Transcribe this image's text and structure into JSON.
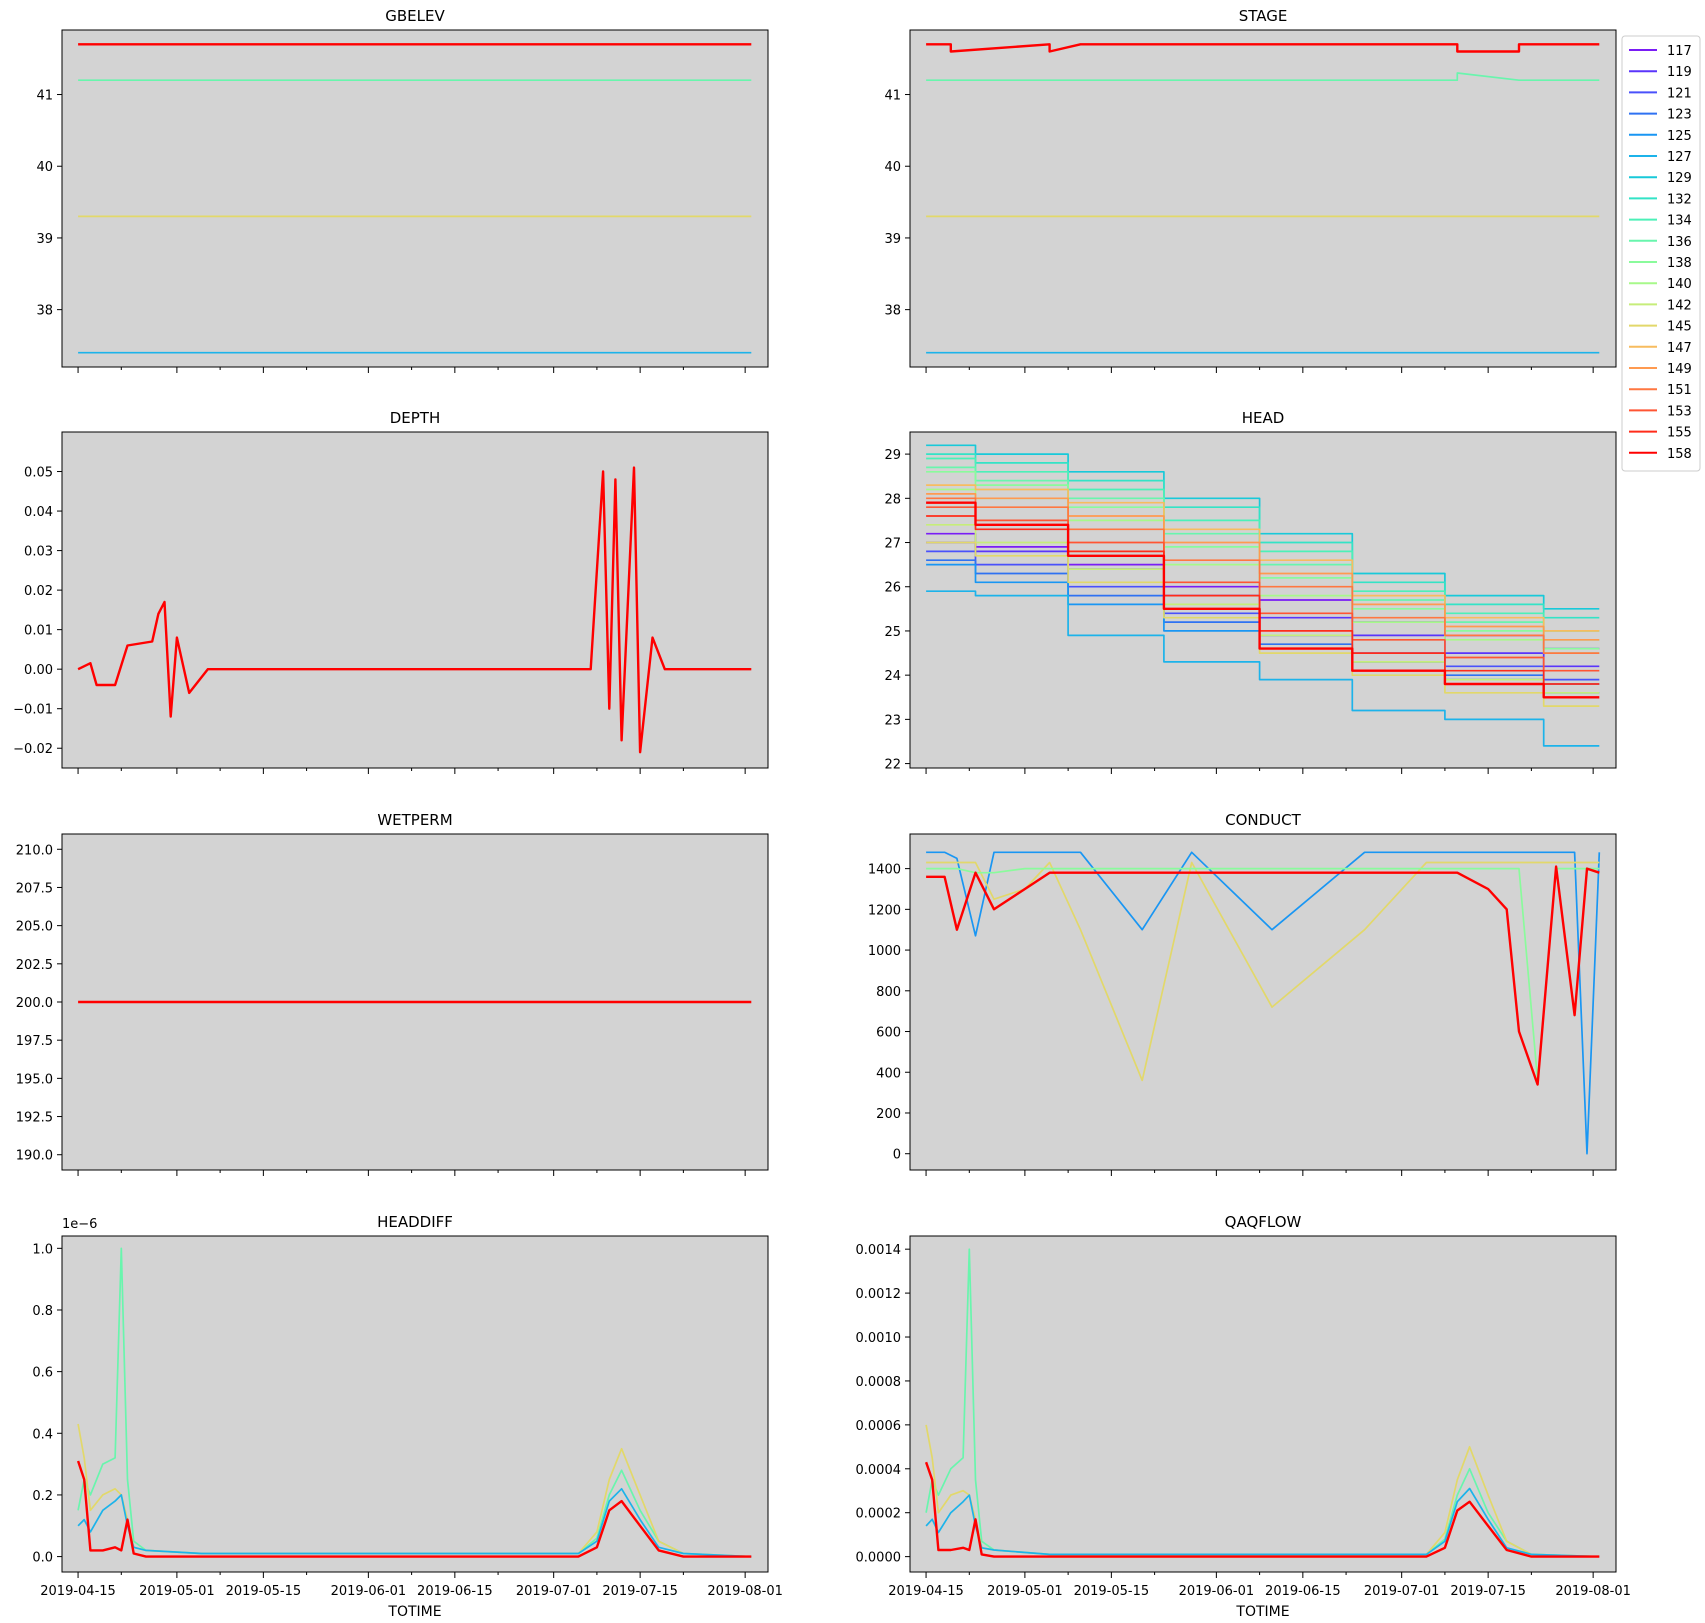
{
  "figure": {
    "xlabel": "TOTIME"
  },
  "legend": {
    "placement": "right of STAGE panel",
    "entries": [
      "117",
      "119",
      "121",
      "123",
      "125",
      "127",
      "129",
      "132",
      "134",
      "136",
      "138",
      "140",
      "142",
      "145",
      "147",
      "149",
      "151",
      "153",
      "155",
      "158"
    ],
    "colors": [
      "#7a1df5",
      "#5a35fb",
      "#4a51fb",
      "#2f72f2",
      "#1996f3",
      "#1cb3ea",
      "#18c9d9",
      "#33e3c6",
      "#4cf0b8",
      "#69f5ad",
      "#8afb9c",
      "#a7f98a",
      "#c6ed7a",
      "#e2d86a",
      "#f7bc5f",
      "#ff9a50",
      "#ff7741",
      "#ff5533",
      "#ff2c1a",
      "#ff0000"
    ]
  },
  "chart_data": [
    {
      "type": "line",
      "title": "GBELEV",
      "xlabel": "",
      "ylabel": "",
      "x": [
        "2019-04-15",
        "2019-08-02"
      ],
      "ylim": [
        37.2,
        41.9
      ],
      "yticks": [
        "38",
        "39",
        "40",
        "41"
      ],
      "xtick_labels_shown": false,
      "series": [
        {
          "name": "158",
          "values": [
            41.7,
            41.7
          ]
        },
        {
          "name": "136",
          "values": [
            41.2,
            41.2
          ]
        },
        {
          "name": "145",
          "values": [
            39.3,
            39.3
          ]
        },
        {
          "name": "127",
          "values": [
            37.4,
            37.4
          ]
        }
      ]
    },
    {
      "type": "line",
      "title": "STAGE",
      "xlabel": "",
      "ylabel": "",
      "x": [
        "2019-04-15",
        "2019-04-19",
        "2019-04-19",
        "2019-05-05",
        "2019-05-05",
        "2019-05-10",
        "2019-05-10",
        "2019-07-10",
        "2019-07-10",
        "2019-07-20",
        "2019-07-20",
        "2019-08-02"
      ],
      "ylim": [
        37.2,
        41.9
      ],
      "yticks": [
        "38",
        "39",
        "40",
        "41"
      ],
      "xtick_labels_shown": false,
      "series": [
        {
          "name": "158",
          "values": [
            41.7,
            41.7,
            41.6,
            41.7,
            41.6,
            41.7,
            41.7,
            41.7,
            41.6,
            41.6,
            41.7,
            41.7
          ]
        },
        {
          "name": "136",
          "values": [
            41.2,
            41.2,
            41.2,
            41.2,
            41.2,
            41.2,
            41.2,
            41.2,
            41.3,
            41.2,
            41.2,
            41.2
          ]
        },
        {
          "name": "145",
          "values": [
            39.3,
            39.3,
            39.3,
            39.3,
            39.3,
            39.3,
            39.3,
            39.3,
            39.3,
            39.3,
            39.3,
            39.3
          ]
        },
        {
          "name": "127",
          "values": [
            37.4,
            37.4,
            37.4,
            37.4,
            37.4,
            37.4,
            37.4,
            37.4,
            37.4,
            37.4,
            37.4,
            37.4
          ]
        }
      ]
    },
    {
      "type": "line",
      "title": "DEPTH",
      "xlabel": "",
      "ylabel": "",
      "x": [
        "2019-04-15",
        "2019-04-17",
        "2019-04-18",
        "2019-04-21",
        "2019-04-23",
        "2019-04-27",
        "2019-04-28",
        "2019-04-29",
        "2019-04-30",
        "2019-05-01",
        "2019-05-03",
        "2019-05-06",
        "2019-07-07",
        "2019-07-09",
        "2019-07-10",
        "2019-07-11",
        "2019-07-12",
        "2019-07-14",
        "2019-07-15",
        "2019-07-17",
        "2019-07-19",
        "2019-08-02"
      ],
      "ylim": [
        -0.025,
        0.06
      ],
      "yticks": [
        "−0.02",
        "−0.01",
        "0.00",
        "0.01",
        "0.02",
        "0.03",
        "0.04",
        "0.05"
      ],
      "xtick_labels_shown": false,
      "series": [
        {
          "name": "158",
          "values": [
            0.0,
            0.0015,
            -0.004,
            -0.004,
            0.006,
            0.007,
            0.014,
            0.017,
            -0.012,
            0.008,
            -0.006,
            0.0,
            0.0,
            0.05,
            -0.01,
            0.048,
            -0.018,
            0.051,
            -0.021,
            0.008,
            0.0,
            0.0
          ]
        }
      ]
    },
    {
      "type": "line",
      "title": "HEAD",
      "xlabel": "",
      "ylabel": "",
      "x": [
        "2019-04-15",
        "2019-05-01",
        "2019-05-15",
        "2019-06-01",
        "2019-06-15",
        "2019-07-01",
        "2019-07-15",
        "2019-08-02"
      ],
      "ylim": [
        21.9,
        29.5
      ],
      "yticks": [
        "22",
        "23",
        "24",
        "25",
        "26",
        "27",
        "28",
        "29"
      ],
      "xtick_labels_shown": false,
      "series": [
        {
          "name": "117",
          "values": [
            27.2,
            26.9,
            26.5,
            26.0,
            25.7,
            25.2,
            24.9,
            24.6
          ]
        },
        {
          "name": "119",
          "values": [
            27.0,
            26.8,
            26.4,
            25.8,
            25.3,
            24.9,
            24.5,
            24.2
          ]
        },
        {
          "name": "121",
          "values": [
            26.8,
            26.5,
            26.0,
            25.4,
            24.9,
            24.5,
            24.2,
            23.9
          ]
        },
        {
          "name": "123",
          "values": [
            26.6,
            26.3,
            25.8,
            25.2,
            24.7,
            24.3,
            24.0,
            23.8
          ]
        },
        {
          "name": "125",
          "values": [
            26.5,
            26.1,
            25.6,
            25.0,
            24.6,
            24.1,
            23.9,
            23.6
          ]
        },
        {
          "name": "127",
          "values": [
            25.9,
            25.8,
            24.9,
            24.3,
            23.9,
            23.2,
            23.0,
            22.4
          ]
        },
        {
          "name": "129",
          "values": [
            29.2,
            29.0,
            28.6,
            28.0,
            27.2,
            26.3,
            25.8,
            25.5
          ]
        },
        {
          "name": "132",
          "values": [
            29.0,
            28.8,
            28.4,
            27.8,
            27.0,
            26.1,
            25.6,
            25.3
          ]
        },
        {
          "name": "134",
          "values": [
            28.9,
            28.6,
            28.2,
            27.5,
            26.8,
            25.9,
            25.4,
            25.0
          ]
        },
        {
          "name": "136",
          "values": [
            28.7,
            28.4,
            28.0,
            27.2,
            26.5,
            25.7,
            25.2,
            24.8
          ]
        },
        {
          "name": "138",
          "values": [
            28.6,
            28.3,
            27.8,
            26.9,
            26.2,
            25.5,
            25.0,
            24.6
          ]
        },
        {
          "name": "140",
          "values": [
            28.2,
            28.0,
            27.5,
            26.5,
            25.8,
            25.2,
            24.8,
            24.5
          ]
        },
        {
          "name": "142",
          "values": [
            27.4,
            27.0,
            26.4,
            25.6,
            24.9,
            24.3,
            23.9,
            23.6
          ]
        },
        {
          "name": "145",
          "values": [
            27.0,
            26.7,
            26.1,
            25.3,
            24.5,
            24.0,
            23.6,
            23.3
          ]
        },
        {
          "name": "147",
          "values": [
            28.3,
            28.2,
            27.9,
            27.3,
            26.6,
            25.8,
            25.3,
            25.0
          ]
        },
        {
          "name": "149",
          "values": [
            28.1,
            28.0,
            27.6,
            27.0,
            26.3,
            25.6,
            25.1,
            24.8
          ]
        },
        {
          "name": "151",
          "values": [
            28.0,
            27.8,
            27.3,
            26.6,
            26.0,
            25.3,
            24.9,
            24.5
          ]
        },
        {
          "name": "153",
          "values": [
            27.8,
            27.5,
            27.0,
            26.1,
            25.4,
            24.8,
            24.4,
            24.1
          ]
        },
        {
          "name": "155",
          "values": [
            27.6,
            27.3,
            26.8,
            25.8,
            25.0,
            24.5,
            24.1,
            23.8
          ]
        },
        {
          "name": "158",
          "values": [
            27.9,
            27.4,
            26.7,
            25.5,
            24.6,
            24.1,
            23.8,
            23.5
          ]
        }
      ]
    },
    {
      "type": "line",
      "title": "WETPERM",
      "xlabel": "",
      "ylabel": "",
      "x": [
        "2019-04-15",
        "2019-08-02"
      ],
      "ylim": [
        189.0,
        211.0
      ],
      "yticks": [
        "190.0",
        "192.5",
        "195.0",
        "197.5",
        "200.0",
        "202.5",
        "205.0",
        "207.5",
        "210.0"
      ],
      "xtick_labels_shown": false,
      "series": [
        {
          "name": "158",
          "values": [
            200.0,
            200.0
          ]
        }
      ]
    },
    {
      "type": "line",
      "title": "CONDUCT",
      "xlabel": "",
      "ylabel": "",
      "x": [
        "2019-04-15",
        "2019-04-18",
        "2019-04-20",
        "2019-04-23",
        "2019-04-26",
        "2019-05-01",
        "2019-05-05",
        "2019-05-10",
        "2019-05-20",
        "2019-05-28",
        "2019-06-10",
        "2019-06-25",
        "2019-07-05",
        "2019-07-10",
        "2019-07-15",
        "2019-07-18",
        "2019-07-20",
        "2019-07-23",
        "2019-07-26",
        "2019-07-29",
        "2019-07-31",
        "2019-08-02"
      ],
      "ylim": [
        -80,
        1570
      ],
      "yticks": [
        "0",
        "200",
        "400",
        "600",
        "800",
        "1000",
        "1200",
        "1400"
      ],
      "xtick_labels_shown": false,
      "series": [
        {
          "name": "125",
          "values": [
            1480,
            1480,
            1450,
            1070,
            1480,
            1480,
            1480,
            1480,
            1100,
            1480,
            1100,
            1480,
            1480,
            1480,
            1480,
            1480,
            1480,
            1480,
            1480,
            1480,
            0,
            1480
          ]
        },
        {
          "name": "145",
          "values": [
            1430,
            1430,
            1430,
            1430,
            1250,
            1300,
            1430,
            1100,
            360,
            1430,
            720,
            1100,
            1430,
            1430,
            1430,
            1430,
            1430,
            1430,
            1430,
            1430,
            1430,
            1430
          ]
        },
        {
          "name": "138",
          "values": [
            1400,
            1400,
            1400,
            1380,
            1380,
            1400,
            1400,
            1400,
            1400,
            1400,
            1400,
            1400,
            1400,
            1400,
            1400,
            1400,
            1400,
            360,
            1400,
            1400,
            1400,
            1400
          ]
        },
        {
          "name": "158",
          "values": [
            1360,
            1360,
            1100,
            1380,
            1200,
            1300,
            1380,
            1380,
            1380,
            1380,
            1380,
            1380,
            1380,
            1380,
            1300,
            1200,
            600,
            340,
            1410,
            680,
            1400,
            1380
          ]
        }
      ]
    },
    {
      "type": "line",
      "title": "HEADDIFF",
      "xlabel": "TOTIME",
      "ylabel": "",
      "axis_offset_label": "1e−6",
      "x": [
        "2019-04-15",
        "2019-04-16",
        "2019-04-17",
        "2019-04-19",
        "2019-04-21",
        "2019-04-22",
        "2019-04-23",
        "2019-04-24",
        "2019-04-26",
        "2019-05-05",
        "2019-06-01",
        "2019-07-05",
        "2019-07-08",
        "2019-07-10",
        "2019-07-12",
        "2019-07-15",
        "2019-07-18",
        "2019-07-22",
        "2019-08-02"
      ],
      "ylim": [
        -0.05,
        1.04
      ],
      "yticks": [
        "0.0",
        "0.2",
        "0.4",
        "0.6",
        "0.8",
        "1.0"
      ],
      "xticks": [
        "2019-04-15",
        "2019-05-01",
        "2019-05-15",
        "2019-06-01",
        "2019-06-15",
        "2019-07-01",
        "2019-07-15",
        "2019-08-01"
      ],
      "series": [
        {
          "name": "136",
          "values": [
            0.15,
            0.25,
            0.2,
            0.3,
            0.32,
            1.0,
            0.25,
            0.05,
            0.02,
            0.01,
            0.01,
            0.01,
            0.06,
            0.2,
            0.28,
            0.15,
            0.05,
            0.01,
            0.0
          ]
        },
        {
          "name": "145",
          "values": [
            0.43,
            0.32,
            0.15,
            0.2,
            0.22,
            0.2,
            0.12,
            0.03,
            0.02,
            0.01,
            0.01,
            0.01,
            0.08,
            0.25,
            0.35,
            0.2,
            0.05,
            0.01,
            0.0
          ]
        },
        {
          "name": "127",
          "values": [
            0.1,
            0.12,
            0.08,
            0.15,
            0.18,
            0.2,
            0.1,
            0.03,
            0.02,
            0.01,
            0.01,
            0.01,
            0.05,
            0.18,
            0.22,
            0.12,
            0.03,
            0.01,
            0.0
          ]
        },
        {
          "name": "158",
          "values": [
            0.31,
            0.25,
            0.02,
            0.02,
            0.03,
            0.02,
            0.12,
            0.01,
            0.0,
            0.0,
            0.0,
            0.0,
            0.03,
            0.15,
            0.18,
            0.1,
            0.02,
            0.0,
            0.0
          ]
        }
      ]
    },
    {
      "type": "line",
      "title": "QAQFLOW",
      "xlabel": "TOTIME",
      "ylabel": "",
      "x": [
        "2019-04-15",
        "2019-04-16",
        "2019-04-17",
        "2019-04-19",
        "2019-04-21",
        "2019-04-22",
        "2019-04-23",
        "2019-04-24",
        "2019-04-26",
        "2019-05-05",
        "2019-06-01",
        "2019-07-05",
        "2019-07-08",
        "2019-07-10",
        "2019-07-12",
        "2019-07-15",
        "2019-07-18",
        "2019-07-22",
        "2019-08-02"
      ],
      "ylim": [
        -7e-05,
        0.00146
      ],
      "yticks": [
        "0.0000",
        "0.0002",
        "0.0004",
        "0.0006",
        "0.0008",
        "0.0010",
        "0.0012",
        "0.0014"
      ],
      "xticks": [
        "2019-04-15",
        "2019-05-01",
        "2019-05-15",
        "2019-06-01",
        "2019-06-15",
        "2019-07-01",
        "2019-07-15",
        "2019-08-01"
      ],
      "series": [
        {
          "name": "136",
          "values": [
            0.0002,
            0.00035,
            0.00028,
            0.0004,
            0.00045,
            0.0014,
            0.00035,
            7e-05,
            3e-05,
            1e-05,
            1e-05,
            1e-05,
            8e-05,
            0.00028,
            0.0004,
            0.0002,
            7e-05,
            1e-05,
            0.0
          ]
        },
        {
          "name": "145",
          "values": [
            0.0006,
            0.00045,
            0.0002,
            0.00028,
            0.0003,
            0.00028,
            0.00017,
            4e-05,
            3e-05,
            1e-05,
            1e-05,
            1e-05,
            0.00011,
            0.00035,
            0.0005,
            0.00028,
            7e-05,
            1e-05,
            0.0
          ]
        },
        {
          "name": "127",
          "values": [
            0.00014,
            0.00017,
            0.00011,
            0.0002,
            0.00025,
            0.00028,
            0.00014,
            4e-05,
            3e-05,
            1e-05,
            1e-05,
            1e-05,
            7e-05,
            0.00025,
            0.00031,
            0.00017,
            4e-05,
            1e-05,
            0.0
          ]
        },
        {
          "name": "158",
          "values": [
            0.00043,
            0.00035,
            3e-05,
            3e-05,
            4e-05,
            3e-05,
            0.00017,
            1e-05,
            0.0,
            0.0,
            0.0,
            0.0,
            4e-05,
            0.00021,
            0.00025,
            0.00014,
            3e-05,
            0.0,
            0.0
          ]
        }
      ]
    }
  ]
}
